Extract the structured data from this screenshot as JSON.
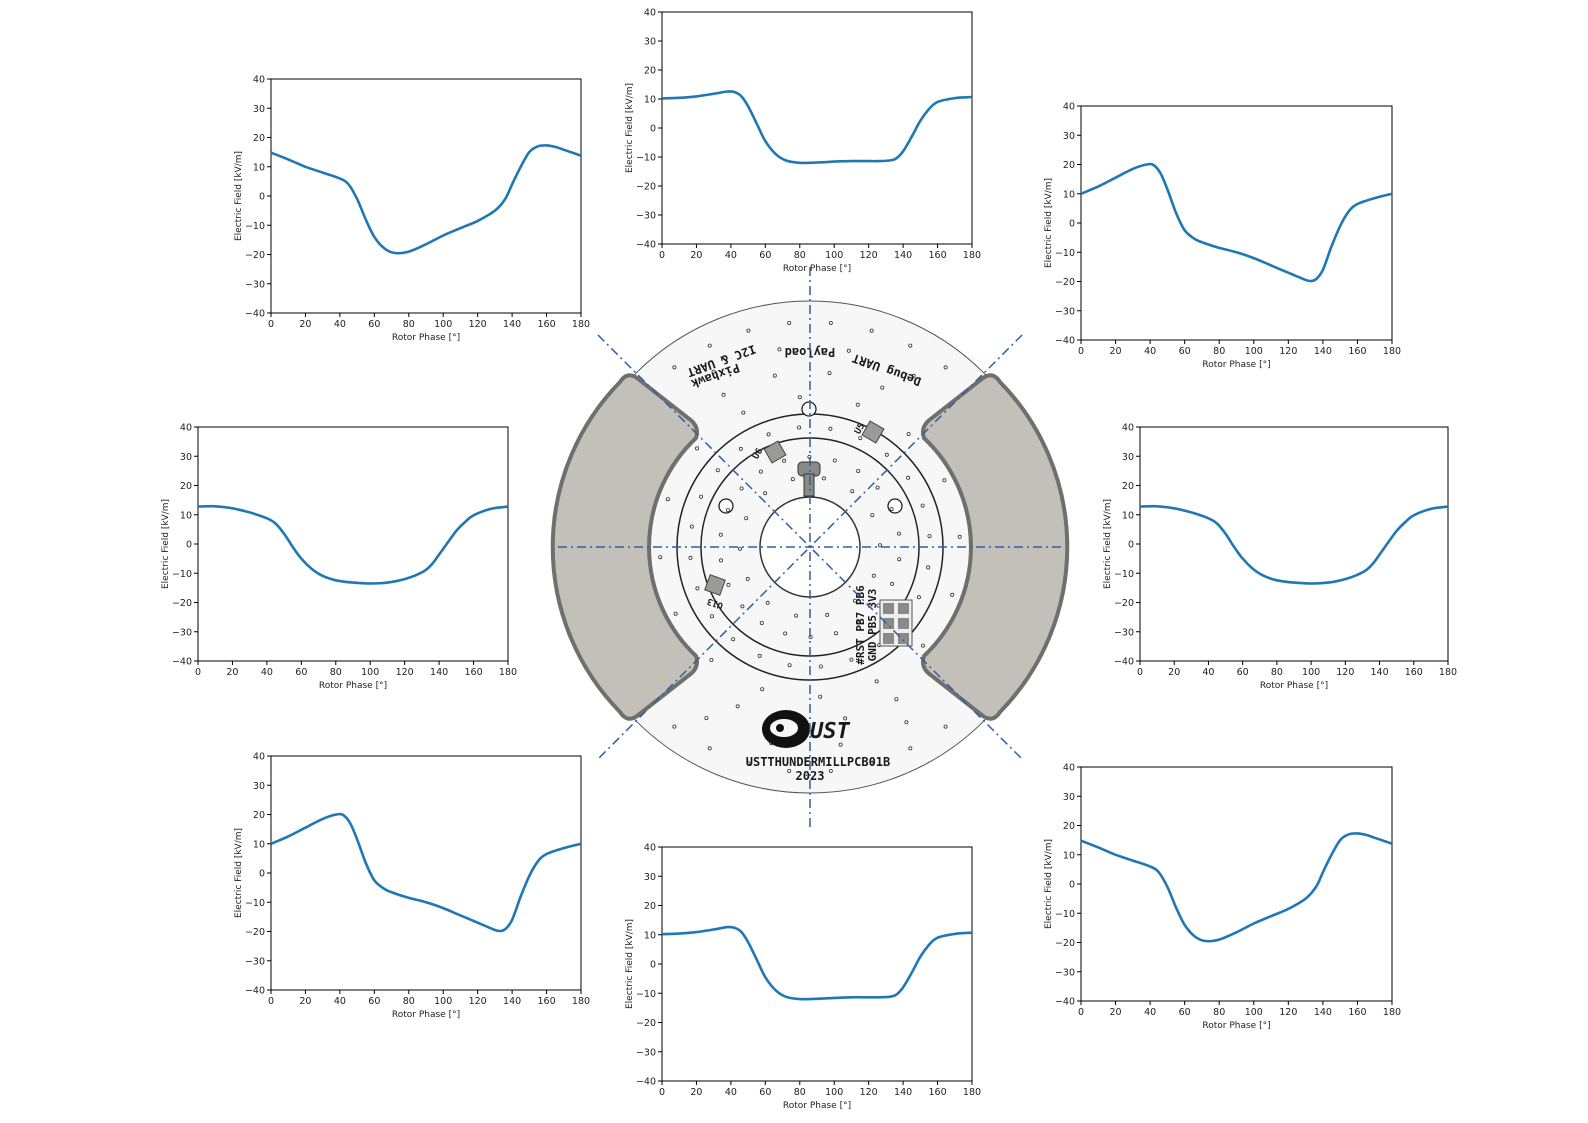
{
  "board": {
    "labels": {
      "payload": "Payload",
      "debug_uart": "Debug UART",
      "pixhawk": "Pixhawk",
      "i2c_uart": "I2C & UART",
      "u5": "U5",
      "u6": "U6",
      "u13": "U13",
      "pins_top": "#RST PB7 PB6",
      "pins_bottom": "GND PB5 3V3",
      "logo": "UST",
      "board_name": "USTTHUNDERMILLPCB01B",
      "year": "2023"
    },
    "colors": {
      "pad": "#c2c0b8",
      "pad_edge": "#6f6f6b",
      "axis_line": "#2f5fa8",
      "board": "#f7f7f7"
    }
  },
  "chart_data": [
    {
      "id": "top",
      "type": "line",
      "xlabel": "Rotor Phase [°]",
      "ylabel": "Electric Field [kV/m]",
      "xlim": [
        0,
        180
      ],
      "ylim": [
        -40,
        40
      ],
      "xticks": [
        0,
        20,
        40,
        60,
        80,
        100,
        120,
        140,
        160,
        180
      ],
      "yticks": [
        -40,
        -30,
        -20,
        -10,
        0,
        10,
        20,
        30,
        40
      ],
      "grid": false,
      "color": "#1f77b4",
      "series": [
        {
          "x": [
            0,
            10,
            20,
            30,
            38,
            42,
            46,
            50,
            55,
            60,
            66,
            72,
            80,
            90,
            100,
            110,
            120,
            126,
            132,
            136,
            140,
            145,
            150,
            155,
            160,
            170,
            180
          ],
          "y": [
            10.2,
            10.4,
            10.9,
            11.8,
            12.6,
            12.4,
            11.0,
            7.5,
            1.5,
            -4.5,
            -9.0,
            -11.2,
            -12.0,
            -11.9,
            -11.6,
            -11.4,
            -11.4,
            -11.4,
            -11.2,
            -10.5,
            -8.0,
            -3.0,
            2.5,
            6.5,
            9.0,
            10.3,
            10.7
          ]
        }
      ]
    },
    {
      "id": "top-right",
      "type": "line",
      "xlabel": "Rotor Phase [°]",
      "ylabel": "Electric Field [kV/m]",
      "xlim": [
        0,
        180
      ],
      "ylim": [
        -40,
        40
      ],
      "xticks": [
        0,
        20,
        40,
        60,
        80,
        100,
        120,
        140,
        160,
        180
      ],
      "yticks": [
        -40,
        -30,
        -20,
        -10,
        0,
        10,
        20,
        30,
        40
      ],
      "grid": false,
      "color": "#1f77b4",
      "series": [
        {
          "x": [
            0,
            10,
            20,
            30,
            38,
            42,
            46,
            50,
            55,
            60,
            66,
            72,
            80,
            90,
            100,
            110,
            120,
            126,
            132,
            136,
            140,
            145,
            150,
            155,
            160,
            170,
            180
          ],
          "y": [
            10,
            12.5,
            15.5,
            18.5,
            20,
            19.8,
            17,
            11.5,
            3.5,
            -2.5,
            -5.5,
            -7,
            -8.5,
            -10,
            -12,
            -14.5,
            -17,
            -18.5,
            -19.8,
            -19.2,
            -16,
            -8,
            -1,
            4,
            6.5,
            8.5,
            10
          ]
        }
      ]
    },
    {
      "id": "right",
      "type": "line",
      "xlabel": "Rotor Phase [°]",
      "ylabel": "Electric Field [kV/m]",
      "xlim": [
        0,
        180
      ],
      "ylim": [
        -40,
        40
      ],
      "xticks": [
        0,
        20,
        40,
        60,
        80,
        100,
        120,
        140,
        160,
        180
      ],
      "yticks": [
        -40,
        -30,
        -20,
        -10,
        0,
        10,
        20,
        30,
        40
      ],
      "grid": false,
      "color": "#1f77b4",
      "series": [
        {
          "x": [
            0,
            10,
            20,
            30,
            40,
            45,
            50,
            55,
            60,
            66,
            72,
            80,
            90,
            100,
            110,
            120,
            126,
            132,
            136,
            140,
            145,
            150,
            155,
            160,
            170,
            180
          ],
          "y": [
            12.8,
            12.9,
            12.2,
            10.8,
            8.8,
            7.0,
            3.5,
            -1.0,
            -5.0,
            -8.5,
            -10.8,
            -12.4,
            -13.2,
            -13.5,
            -13.2,
            -12.0,
            -10.8,
            -9.0,
            -6.8,
            -3.6,
            0.5,
            4.5,
            7.5,
            9.8,
            12.0,
            12.8
          ]
        }
      ]
    },
    {
      "id": "bottom-right",
      "type": "line",
      "xlabel": "Rotor Phase [°]",
      "ylabel": "Electric Field [kV/m]",
      "xlim": [
        0,
        180
      ],
      "ylim": [
        -40,
        40
      ],
      "xticks": [
        0,
        20,
        40,
        60,
        80,
        100,
        120,
        140,
        160,
        180
      ],
      "yticks": [
        -40,
        -30,
        -20,
        -10,
        0,
        10,
        20,
        30,
        40
      ],
      "grid": false,
      "color": "#1f77b4",
      "series": [
        {
          "x": [
            0,
            10,
            20,
            30,
            40,
            45,
            50,
            55,
            60,
            66,
            72,
            80,
            90,
            100,
            110,
            120,
            130,
            136,
            140,
            145,
            150,
            155,
            160,
            165,
            170,
            180
          ],
          "y": [
            14.8,
            12.5,
            10,
            8,
            6,
            4,
            -1,
            -8,
            -14,
            -18,
            -19.5,
            -19,
            -16.5,
            -13.5,
            -11,
            -8.5,
            -5,
            -1,
            4,
            10,
            15,
            17,
            17.3,
            16.8,
            15.8,
            13.8
          ]
        }
      ]
    },
    {
      "id": "bottom",
      "type": "line",
      "xlabel": "Rotor Phase [°]",
      "ylabel": "Electric Field [kV/m]",
      "xlim": [
        0,
        180
      ],
      "ylim": [
        -40,
        40
      ],
      "xticks": [
        0,
        20,
        40,
        60,
        80,
        100,
        120,
        140,
        160,
        180
      ],
      "yticks": [
        -40,
        -30,
        -20,
        -10,
        0,
        10,
        20,
        30,
        40
      ],
      "grid": false,
      "color": "#1f77b4",
      "series": [
        {
          "x": [
            0,
            10,
            20,
            30,
            38,
            42,
            46,
            50,
            55,
            60,
            66,
            72,
            80,
            90,
            100,
            110,
            120,
            126,
            132,
            136,
            140,
            145,
            150,
            155,
            160,
            170,
            180
          ],
          "y": [
            10.2,
            10.4,
            10.9,
            11.8,
            12.6,
            12.4,
            11.0,
            7.5,
            1.5,
            -4.5,
            -9.0,
            -11.2,
            -12.0,
            -11.9,
            -11.6,
            -11.4,
            -11.4,
            -11.4,
            -11.2,
            -10.5,
            -8.0,
            -3.0,
            2.5,
            6.5,
            9.0,
            10.3,
            10.7
          ]
        }
      ]
    },
    {
      "id": "bottom-left",
      "type": "line",
      "xlabel": "Rotor Phase [°]",
      "ylabel": "Electric Field [kV/m]",
      "xlim": [
        0,
        180
      ],
      "ylim": [
        -40,
        40
      ],
      "xticks": [
        0,
        20,
        40,
        60,
        80,
        100,
        120,
        140,
        160,
        180
      ],
      "yticks": [
        -40,
        -30,
        -20,
        -10,
        0,
        10,
        20,
        30,
        40
      ],
      "grid": false,
      "color": "#1f77b4",
      "series": [
        {
          "x": [
            0,
            10,
            20,
            30,
            38,
            42,
            46,
            50,
            55,
            60,
            66,
            72,
            80,
            90,
            100,
            110,
            120,
            126,
            132,
            136,
            140,
            145,
            150,
            155,
            160,
            170,
            180
          ],
          "y": [
            10,
            12.5,
            15.5,
            18.5,
            20,
            19.8,
            17,
            11.5,
            3.5,
            -2.5,
            -5.5,
            -7,
            -8.5,
            -10,
            -12,
            -14.5,
            -17,
            -18.5,
            -19.8,
            -19.2,
            -16,
            -8,
            -1,
            4,
            6.5,
            8.5,
            10
          ]
        }
      ]
    },
    {
      "id": "left",
      "type": "line",
      "xlabel": "Rotor Phase [°]",
      "ylabel": "Electric Field [kV/m]",
      "xlim": [
        0,
        180
      ],
      "ylim": [
        -40,
        40
      ],
      "xticks": [
        0,
        20,
        40,
        60,
        80,
        100,
        120,
        140,
        160,
        180
      ],
      "yticks": [
        -40,
        -30,
        -20,
        -10,
        0,
        10,
        20,
        30,
        40
      ],
      "grid": false,
      "color": "#1f77b4",
      "series": [
        {
          "x": [
            0,
            10,
            20,
            30,
            40,
            45,
            50,
            55,
            60,
            66,
            72,
            80,
            90,
            100,
            110,
            120,
            126,
            132,
            136,
            140,
            145,
            150,
            155,
            160,
            170,
            180
          ],
          "y": [
            12.8,
            12.9,
            12.2,
            10.8,
            8.8,
            7.0,
            3.5,
            -1.0,
            -5.0,
            -8.5,
            -10.8,
            -12.4,
            -13.2,
            -13.5,
            -13.2,
            -12.0,
            -10.8,
            -9.0,
            -6.8,
            -3.6,
            0.5,
            4.5,
            7.5,
            9.8,
            12.0,
            12.8
          ]
        }
      ]
    },
    {
      "id": "top-left",
      "type": "line",
      "xlabel": "Rotor Phase [°]",
      "ylabel": "Electric Field [kV/m]",
      "xlim": [
        0,
        180
      ],
      "ylim": [
        -40,
        40
      ],
      "xticks": [
        0,
        20,
        40,
        60,
        80,
        100,
        120,
        140,
        160,
        180
      ],
      "yticks": [
        -40,
        -30,
        -20,
        -10,
        0,
        10,
        20,
        30,
        40
      ],
      "grid": false,
      "color": "#1f77b4",
      "series": [
        {
          "x": [
            0,
            10,
            20,
            30,
            40,
            45,
            50,
            55,
            60,
            66,
            72,
            80,
            90,
            100,
            110,
            120,
            130,
            136,
            140,
            145,
            150,
            155,
            160,
            165,
            170,
            180
          ],
          "y": [
            14.8,
            12.5,
            10,
            8,
            6,
            4,
            -1,
            -8,
            -14,
            -18,
            -19.5,
            -19,
            -16.5,
            -13.5,
            -11,
            -8.5,
            -5,
            -1,
            4,
            10,
            15,
            17,
            17.3,
            16.8,
            15.8,
            13.8
          ]
        }
      ]
    }
  ]
}
